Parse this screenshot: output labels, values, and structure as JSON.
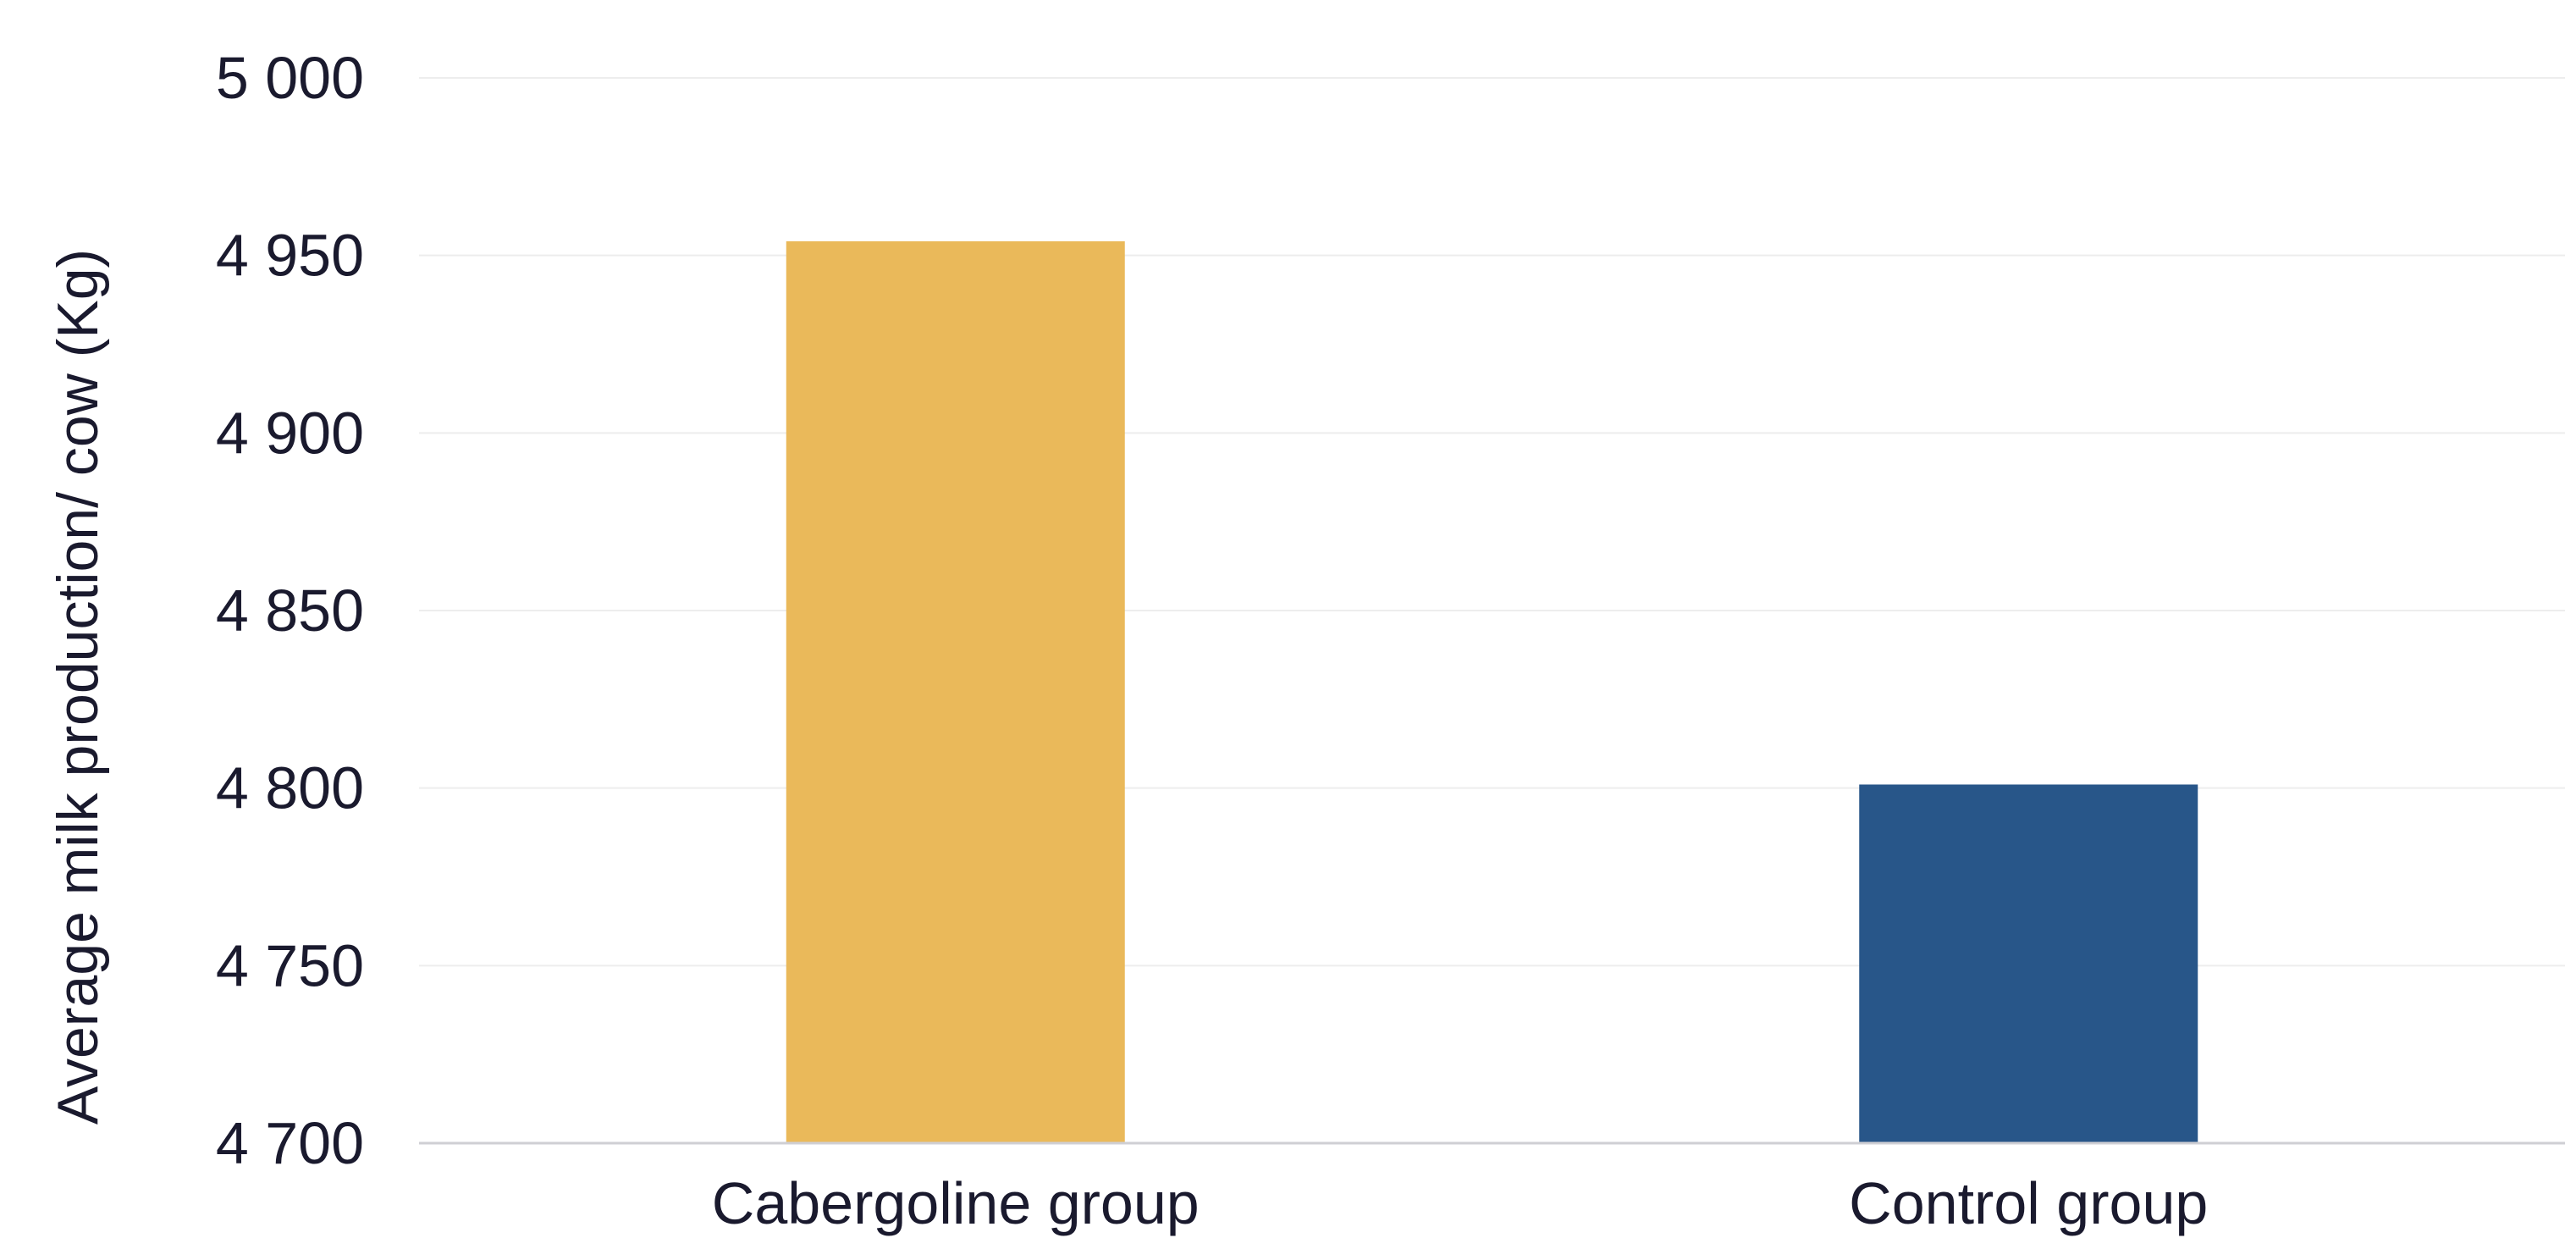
{
  "chart_data": {
    "type": "bar",
    "title": "",
    "xlabel": "",
    "ylabel": "Average milk production/ cow (Kg)",
    "categories": [
      "Cabergoline group",
      "Control group"
    ],
    "values": [
      4954,
      4801
    ],
    "colors": [
      "#EAB95A",
      "#285689"
    ],
    "ylim": [
      4700,
      5000
    ],
    "yticks": [
      4700,
      4750,
      4800,
      4850,
      4900,
      4950,
      5000
    ],
    "ytick_labels": [
      "4 700",
      "4 750",
      "4 800",
      "4 850",
      "4 900",
      "4 950",
      "5 000"
    ],
    "grid": true,
    "legend": "none",
    "colors_meta": {
      "gridline": "#EDEDED",
      "baseline": "#CFCFD4",
      "text": "#1A1A2E"
    }
  }
}
